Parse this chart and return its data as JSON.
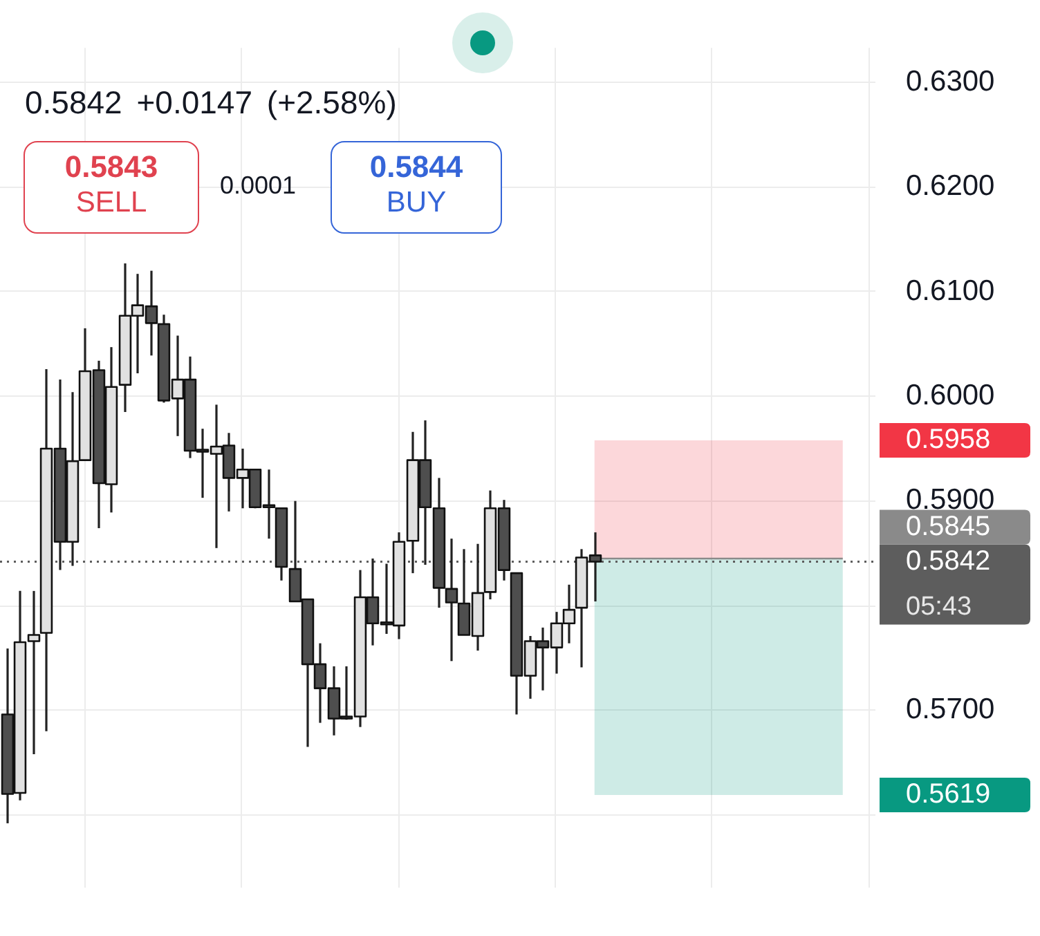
{
  "chart_data": {
    "type": "candlestick",
    "subtitle": "0.5842 +0.0147 (+2.58%)",
    "categories": [
      null,
      null,
      null,
      null,
      null,
      null,
      null,
      null,
      null,
      null,
      null,
      null,
      null,
      null,
      null,
      null,
      null,
      null,
      null,
      null,
      null,
      null,
      null,
      null,
      null,
      null,
      null,
      null,
      null,
      null,
      null,
      null,
      null,
      null,
      null,
      null,
      null,
      null,
      null,
      null,
      null,
      null,
      null,
      null,
      null,
      null,
      null,
      null,
      null,
      null,
      null,
      null,
      null,
      null,
      null,
      null,
      null,
      null,
      null,
      null,
      null,
      null,
      null,
      null,
      null,
      null,
      null
    ],
    "ohlc": [
      [
        0.5696,
        0.5759,
        0.5592,
        0.562
      ],
      [
        0.5621,
        0.5814,
        0.5614,
        0.5765
      ],
      [
        0.5766,
        0.5814,
        0.5658,
        0.5772
      ],
      [
        0.5774,
        0.6026,
        0.568,
        0.595
      ],
      [
        0.595,
        0.6016,
        0.5834,
        0.5861
      ],
      [
        0.5861,
        0.6004,
        0.5838,
        0.5938
      ],
      [
        0.5939,
        0.6065,
        0.5939,
        0.6024
      ],
      [
        0.6025,
        0.6034,
        0.5874,
        0.5917
      ],
      [
        0.5916,
        0.6047,
        0.5889,
        0.6009
      ],
      [
        0.6011,
        0.6127,
        0.5985,
        0.6077
      ],
      [
        0.6077,
        0.6117,
        0.6022,
        0.6087
      ],
      [
        0.6086,
        0.612,
        0.6039,
        0.607
      ],
      [
        0.6069,
        0.6078,
        0.5994,
        0.5996
      ],
      [
        0.5998,
        0.6058,
        0.5962,
        0.6016
      ],
      [
        0.6016,
        0.6038,
        0.5941,
        0.5948
      ],
      [
        0.5948,
        0.5969,
        0.5903,
        0.5948
      ],
      [
        0.5945,
        0.5992,
        0.5855,
        0.5952
      ],
      [
        0.5953,
        0.5965,
        0.589,
        0.5922
      ],
      [
        0.5922,
        0.595,
        0.5893,
        0.593
      ],
      [
        0.593,
        0.593,
        0.5893,
        0.5894
      ],
      [
        0.5895,
        0.593,
        0.5864,
        0.5895
      ],
      [
        0.5893,
        0.5893,
        0.5824,
        0.5837
      ],
      [
        0.5835,
        0.59,
        0.5804,
        0.5804
      ],
      [
        0.5806,
        0.5806,
        0.5665,
        0.5744
      ],
      [
        0.5744,
        0.5764,
        0.5688,
        0.5721
      ],
      [
        0.5721,
        0.5742,
        0.5676,
        0.5692
      ],
      [
        0.5693,
        0.5742,
        0.5691,
        0.5693
      ],
      [
        0.5694,
        0.5834,
        0.5684,
        0.5808
      ],
      [
        0.5808,
        0.5845,
        0.5762,
        0.5783
      ],
      [
        0.5783,
        0.584,
        0.5773,
        0.5783
      ],
      [
        0.5781,
        0.587,
        0.5768,
        0.5861
      ],
      [
        0.5862,
        0.5966,
        0.5831,
        0.5939
      ],
      [
        0.5939,
        0.5977,
        0.5839,
        0.5894
      ],
      [
        0.5893,
        0.5922,
        0.5798,
        0.5817
      ],
      [
        0.5816,
        0.5864,
        0.5747,
        0.5803
      ],
      [
        0.5802,
        0.5854,
        0.5772,
        0.5772
      ],
      [
        0.5771,
        0.5859,
        0.5757,
        0.5812
      ],
      [
        0.5813,
        0.591,
        0.5806,
        0.5893
      ],
      [
        0.5893,
        0.5901,
        0.5824,
        0.5834
      ],
      [
        0.5831,
        0.5831,
        0.5696,
        0.5733
      ],
      [
        0.5733,
        0.5771,
        0.5711,
        0.5766
      ],
      [
        0.5766,
        0.5779,
        0.5719,
        0.576
      ],
      [
        0.576,
        0.5794,
        0.5735,
        0.5783
      ],
      [
        0.5783,
        0.582,
        0.5764,
        0.5796
      ],
      [
        0.5798,
        0.5854,
        0.5741,
        0.5846
      ],
      [
        0.5848,
        0.587,
        0.5804,
        0.5842
      ],
      null,
      null,
      null,
      null,
      null,
      null,
      null,
      null,
      null,
      null,
      null,
      null,
      null,
      null,
      null,
      null,
      null,
      null,
      null,
      null,
      null
    ],
    "colors": [
      "#4e4e4e",
      "#e1e1e1",
      "#e1e1e1",
      "#e1e1e1",
      "#4e4e4e",
      "#e1e1e1",
      "#e1e1e1",
      "#4e4e4e",
      "#e1e1e1",
      "#e1e1e1",
      "#e1e1e1",
      "#4e4e4e",
      "#4e4e4e",
      "#e1e1e1",
      "#4e4e4e",
      "#4e4e4e",
      "#e1e1e1",
      "#4e4e4e",
      "#e1e1e1",
      "#4e4e4e",
      "#4e4e4e",
      "#4e4e4e",
      "#4e4e4e",
      "#4e4e4e",
      "#4e4e4e",
      "#4e4e4e",
      "#4e4e4e",
      "#e1e1e1",
      "#4e4e4e",
      "#4e4e4e",
      "#e1e1e1",
      "#e1e1e1",
      "#4e4e4e",
      "#4e4e4e",
      "#4e4e4e",
      "#4e4e4e",
      "#e1e1e1",
      "#e1e1e1",
      "#4e4e4e",
      "#4e4e4e",
      "#e1e1e1",
      "#4e4e4e",
      "#e1e1e1",
      "#e1e1e1",
      "#e1e1e1",
      "#4e4e4e",
      null,
      null,
      null,
      null,
      null,
      null,
      null,
      null,
      null,
      null,
      null,
      null,
      null,
      null,
      null,
      null,
      null,
      null,
      null,
      null,
      null
    ],
    "ylim": [
      0.553,
      0.6333
    ],
    "yticks": [
      {
        "value": 0.56,
        "label": null
      },
      {
        "value": 0.57,
        "label": "0.5700"
      },
      {
        "value": 0.58,
        "label": null
      },
      {
        "value": 0.59,
        "label": "0.5900"
      },
      {
        "value": 0.6,
        "label": "0.6000"
      },
      {
        "value": 0.61,
        "label": "0.6100"
      },
      {
        "value": 0.62,
        "label": "0.6200"
      },
      {
        "value": 0.63,
        "label": "0.6300"
      }
    ],
    "grid": true,
    "tick_labels": "y",
    "ref_lines": [
      {
        "axis": "y",
        "value": 0.5845,
        "label": "0.5845",
        "color": "#8a8a8a",
        "line_style": "solid"
      },
      {
        "axis": "y",
        "value": 0.5842,
        "label": "0.5842\n05:43",
        "color": "#5d5d5d",
        "line_style": "dotted"
      }
    ],
    "bands": [
      {
        "axis": "y",
        "from": 0.5845,
        "to": 0.5958,
        "label": "0.5958",
        "color": "#f23645"
      },
      {
        "axis": "y",
        "from": 0.5619,
        "to": 0.5845,
        "label": "0.5619",
        "color": "#089981"
      }
    ],
    "annotations": [
      "0.5843",
      "SELL",
      "0.0001",
      "0.5844",
      "BUY"
    ]
  }
}
